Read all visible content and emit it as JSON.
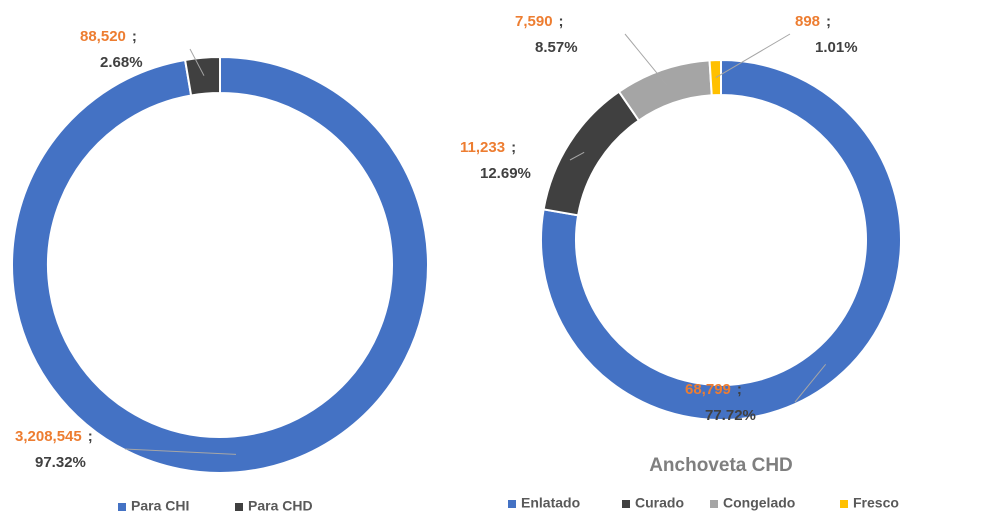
{
  "chart_data": [
    {
      "type": "donut",
      "categories": [
        "Para CHI",
        "Para CHD"
      ],
      "values": [
        3208545,
        88520
      ],
      "value_labels": [
        "3,208,545",
        "88,520"
      ],
      "percentages": [
        97.32,
        2.68
      ],
      "percentage_labels": [
        "97.32%",
        "2.68%"
      ],
      "label_separator": ";",
      "colors": [
        "#4472c4",
        "#404040"
      ],
      "legend": "bottom"
    },
    {
      "type": "donut",
      "title": "Anchoveta CHD",
      "categories": [
        "Enlatado",
        "Curado",
        "Congelado",
        "Fresco"
      ],
      "values": [
        68799,
        11233,
        7590,
        898
      ],
      "value_labels": [
        "68,799",
        "11,233",
        "7,590",
        "898"
      ],
      "percentages": [
        77.72,
        12.69,
        8.57,
        1.01
      ],
      "percentage_labels": [
        "77.72%",
        "12.69%",
        "8.57%",
        "1.01%"
      ],
      "label_separator": ";",
      "colors": [
        "#4472c4",
        "#404040",
        "#a5a5a5",
        "#ffc000"
      ],
      "legend": "bottom"
    }
  ]
}
